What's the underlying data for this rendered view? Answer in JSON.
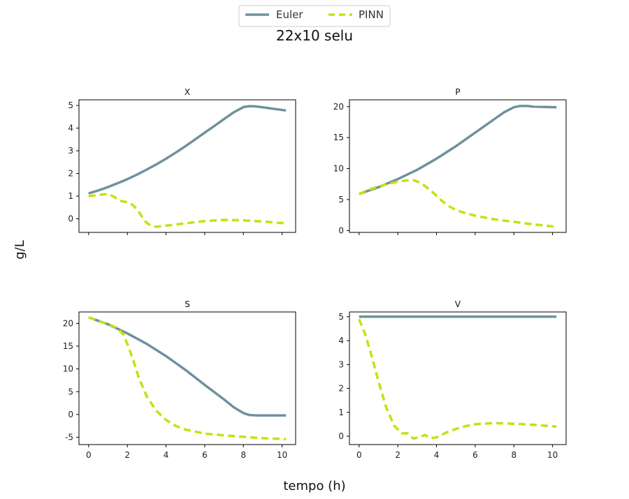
{
  "chart_data": {
    "type": "line",
    "title": "22x10 selu",
    "xlabel": "tempo (h)",
    "ylabel": "g/L",
    "legend": {
      "placement": "top-center",
      "entries": [
        "Euler",
        "PINN"
      ]
    },
    "colors": {
      "Euler": "#6f919e",
      "PINN": "#c8e00f"
    },
    "subplots": [
      {
        "title": "X",
        "xlim": [
          -0.5,
          10.7
        ],
        "ylim": [
          -0.6,
          5.25
        ],
        "yticks": [
          0,
          1,
          2,
          3,
          4,
          5
        ],
        "xticks": [
          0,
          2,
          4,
          6,
          8,
          10
        ],
        "show_x_tick_labels": false,
        "series": [
          {
            "name": "Euler",
            "style": "solid",
            "x": [
              0,
              0.5,
              1,
              1.5,
              2,
              2.5,
              3,
              3.5,
              4,
              4.5,
              5,
              5.5,
              6,
              6.5,
              7,
              7.5,
              8,
              8.3,
              8.6,
              9,
              9.5,
              10.2
            ],
            "y": [
              1.12,
              1.25,
              1.4,
              1.57,
              1.75,
              1.95,
              2.17,
              2.4,
              2.65,
              2.92,
              3.2,
              3.5,
              3.8,
              4.1,
              4.4,
              4.7,
              4.93,
              4.97,
              4.96,
              4.92,
              4.86,
              4.78
            ]
          },
          {
            "name": "PINN",
            "style": "dashed",
            "x": [
              0,
              0.5,
              1,
              1.3,
              1.6,
              1.8,
              2,
              2.3,
              2.6,
              2.9,
              3.2,
              3.5,
              4,
              5,
              6,
              7,
              8,
              9,
              10.2
            ],
            "y": [
              1.0,
              1.05,
              1.1,
              0.98,
              0.8,
              0.76,
              0.74,
              0.6,
              0.3,
              -0.1,
              -0.3,
              -0.35,
              -0.3,
              -0.2,
              -0.1,
              -0.05,
              -0.07,
              -0.12,
              -0.2
            ]
          }
        ]
      },
      {
        "title": "P",
        "xlim": [
          -0.5,
          10.7
        ],
        "ylim": [
          -0.3,
          21.1
        ],
        "yticks": [
          0,
          5,
          10,
          15,
          20
        ],
        "xticks": [
          0,
          2,
          4,
          6,
          8,
          10
        ],
        "show_x_tick_labels": false,
        "series": [
          {
            "name": "Euler",
            "style": "solid",
            "x": [
              0,
              1,
              2,
              3,
              4,
              5,
              6,
              7,
              7.5,
              8,
              8.3,
              8.7,
              9,
              10.2
            ],
            "y": [
              5.9,
              7.0,
              8.3,
              9.8,
              11.6,
              13.6,
              15.8,
              18.0,
              19.1,
              19.9,
              20.1,
              20.1,
              20.0,
              19.9
            ]
          },
          {
            "name": "PINN",
            "style": "dashed",
            "x": [
              0,
              0.5,
              1,
              1.5,
              2,
              2.5,
              2.8,
              3.1,
              3.4,
              3.8,
              4.2,
              4.6,
              5,
              5.5,
              6,
              7,
              8,
              9,
              10.2
            ],
            "y": [
              5.9,
              6.6,
              7.1,
              7.5,
              7.9,
              8.1,
              8.15,
              7.8,
              7.2,
              6.2,
              5.0,
              4.0,
              3.3,
              2.8,
              2.4,
              1.8,
              1.4,
              1.0,
              0.6
            ]
          }
        ]
      },
      {
        "title": "S",
        "xlim": [
          -0.5,
          10.7
        ],
        "ylim": [
          -6.6,
          22.5
        ],
        "yticks": [
          -5,
          0,
          5,
          10,
          15,
          20
        ],
        "xticks": [
          0,
          2,
          4,
          6,
          8,
          10
        ],
        "show_x_tick_labels": true,
        "series": [
          {
            "name": "Euler",
            "style": "solid",
            "x": [
              0,
              1,
              2,
              3,
              4,
              5,
              6,
              7,
              7.5,
              8,
              8.3,
              8.7,
              9,
              10.2
            ],
            "y": [
              21.3,
              19.8,
              17.8,
              15.5,
              12.8,
              9.8,
              6.5,
              3.3,
              1.6,
              0.3,
              -0.1,
              -0.2,
              -0.2,
              -0.2
            ]
          },
          {
            "name": "PINN",
            "style": "dashed",
            "x": [
              0,
              0.5,
              1,
              1.5,
              1.8,
              2,
              2.3,
              2.6,
              3,
              3.5,
              4,
              4.5,
              5,
              6,
              7,
              8,
              9,
              10.2
            ],
            "y": [
              21.3,
              20.5,
              19.9,
              18.9,
              17.5,
              15.5,
              12,
              8,
              4,
              0.8,
              -1.2,
              -2.5,
              -3.3,
              -4.2,
              -4.6,
              -4.9,
              -5.2,
              -5.4
            ]
          }
        ]
      },
      {
        "title": "V",
        "xlim": [
          -0.5,
          10.7
        ],
        "ylim": [
          -0.35,
          5.2
        ],
        "yticks": [
          0,
          1,
          2,
          3,
          4,
          5
        ],
        "xticks": [
          0,
          2,
          4,
          6,
          8,
          10
        ],
        "show_x_tick_labels": true,
        "series": [
          {
            "name": "Euler",
            "style": "solid",
            "x": [
              0,
              10.2
            ],
            "y": [
              5.0,
              5.0
            ]
          },
          {
            "name": "PINN",
            "style": "dashed",
            "x": [
              0,
              0.3,
              0.6,
              1,
              1.4,
              1.8,
              2.2,
              2.5,
              2.8,
              3.1,
              3.4,
              3.7,
              4,
              4.5,
              5,
              5.5,
              6,
              7,
              8,
              9,
              10.2
            ],
            "y": [
              4.9,
              4.3,
              3.5,
              2.3,
              1.2,
              0.45,
              0.12,
              0.12,
              -0.1,
              -0.05,
              0.05,
              -0.08,
              -0.05,
              0.15,
              0.3,
              0.42,
              0.5,
              0.55,
              0.52,
              0.48,
              0.4
            ]
          }
        ]
      }
    ]
  }
}
